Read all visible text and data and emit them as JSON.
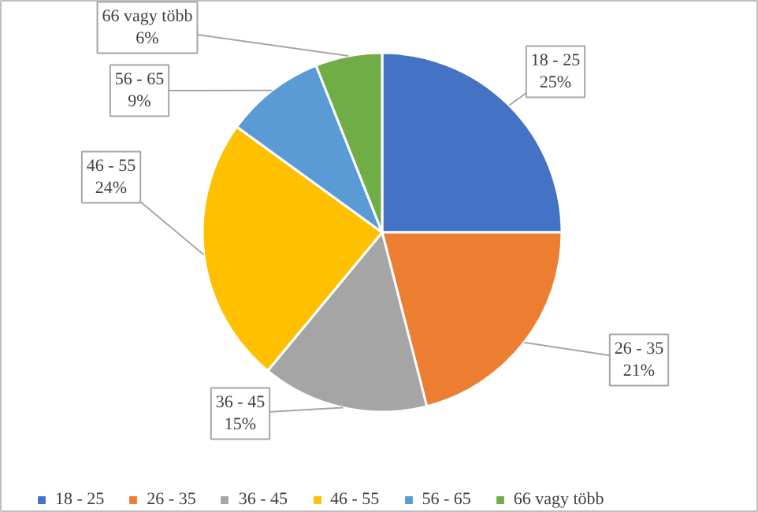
{
  "chart_data": {
    "type": "pie",
    "categories": [
      "18 - 25",
      "26 - 35",
      "36 - 45",
      "46 - 55",
      "56 - 65",
      "66 vagy több"
    ],
    "values": [
      25,
      21,
      15,
      24,
      9,
      6
    ],
    "value_labels": [
      "25%",
      "21%",
      "15%",
      "24%",
      "9%",
      "6%"
    ],
    "colors": [
      "#4472c4",
      "#ed7d31",
      "#a5a5a5",
      "#ffc000",
      "#5b9bd5",
      "#70ad47"
    ],
    "legend": "bottom"
  }
}
